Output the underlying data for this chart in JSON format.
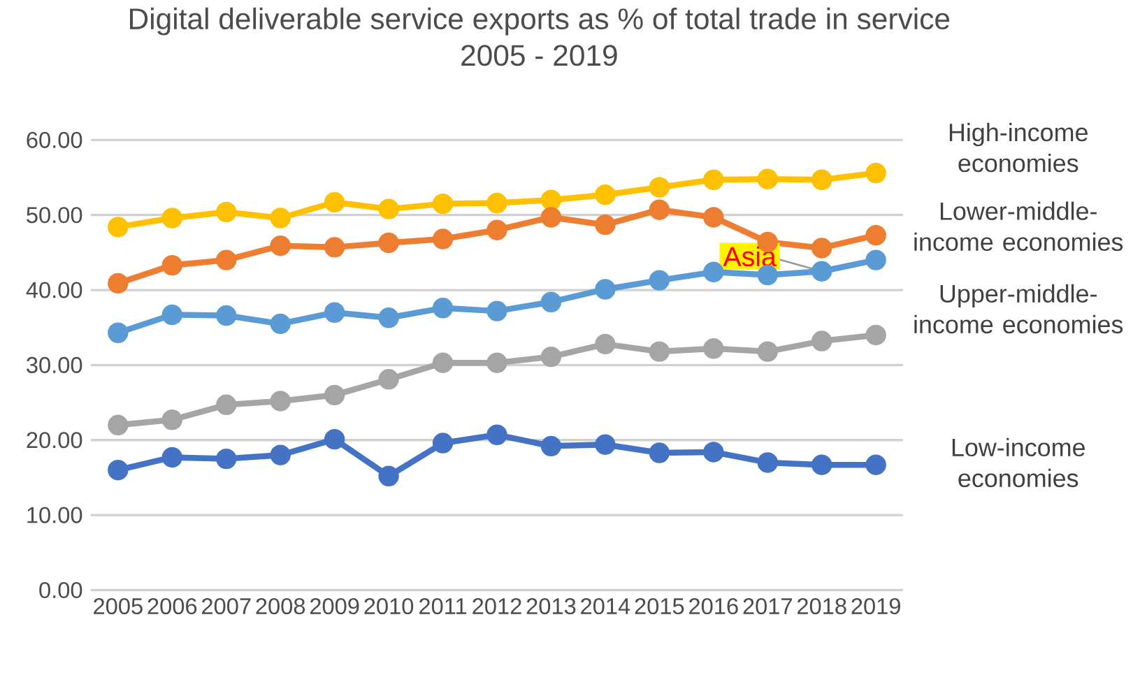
{
  "chart_data": {
    "type": "line",
    "title": "Digital deliverable service exports as % of total trade in service",
    "subtitle": "2005 - 2019",
    "categories": [
      "2005",
      "2006",
      "2007",
      "2008",
      "2009",
      "2010",
      "2011",
      "2012",
      "2013",
      "2014",
      "2015",
      "2016",
      "2017",
      "2018",
      "2019"
    ],
    "series": [
      {
        "name": "High-income economies",
        "color": "#ffc000",
        "values": [
          48.4,
          49.6,
          50.4,
          49.6,
          51.7,
          50.8,
          51.5,
          51.6,
          52.0,
          52.7,
          53.7,
          54.7,
          54.8,
          54.7,
          55.6
        ]
      },
      {
        "name": "Lower-middle-income economies",
        "color": "#ed7d31",
        "values": [
          40.9,
          43.3,
          44.0,
          45.9,
          45.7,
          46.3,
          46.8,
          48.0,
          49.7,
          48.7,
          50.7,
          49.7,
          46.4,
          45.6,
          47.3
        ]
      },
      {
        "name": "Upper-middle-income economies",
        "color": "#5b9bd5",
        "values": [
          34.3,
          36.7,
          36.6,
          35.5,
          37.0,
          36.3,
          37.6,
          37.2,
          38.4,
          40.1,
          41.3,
          42.4,
          42.0,
          42.5,
          44.0
        ]
      },
      {
        "color": "#a5a5a5",
        "values": [
          22.0,
          22.7,
          24.7,
          25.2,
          26.0,
          28.1,
          30.3,
          30.3,
          31.1,
          32.8,
          31.8,
          32.2,
          31.8,
          33.2,
          34.0
        ]
      },
      {
        "name": "Low-income economies",
        "color": "#4472c4",
        "values": [
          16.0,
          17.7,
          17.5,
          18.0,
          20.1,
          15.2,
          19.6,
          20.7,
          19.2,
          19.4,
          18.3,
          18.4,
          17.0,
          16.7,
          16.7
        ]
      }
    ],
    "annotations": [
      {
        "text": "Asia",
        "x": "2018",
        "y": 42.5
      }
    ],
    "ylim": [
      0,
      60
    ],
    "yticks": [
      {
        "value": 0,
        "label": "0.00"
      },
      {
        "value": 10,
        "label": "10.00"
      },
      {
        "value": 20,
        "label": "20.00"
      },
      {
        "value": 30,
        "label": "30.00"
      },
      {
        "value": 40,
        "label": "40.00"
      },
      {
        "value": 50,
        "label": "50.00"
      },
      {
        "value": 60,
        "label": "60.00"
      }
    ],
    "grid": "y",
    "legend": "right",
    "marker": "circle",
    "line_style": "solid"
  }
}
